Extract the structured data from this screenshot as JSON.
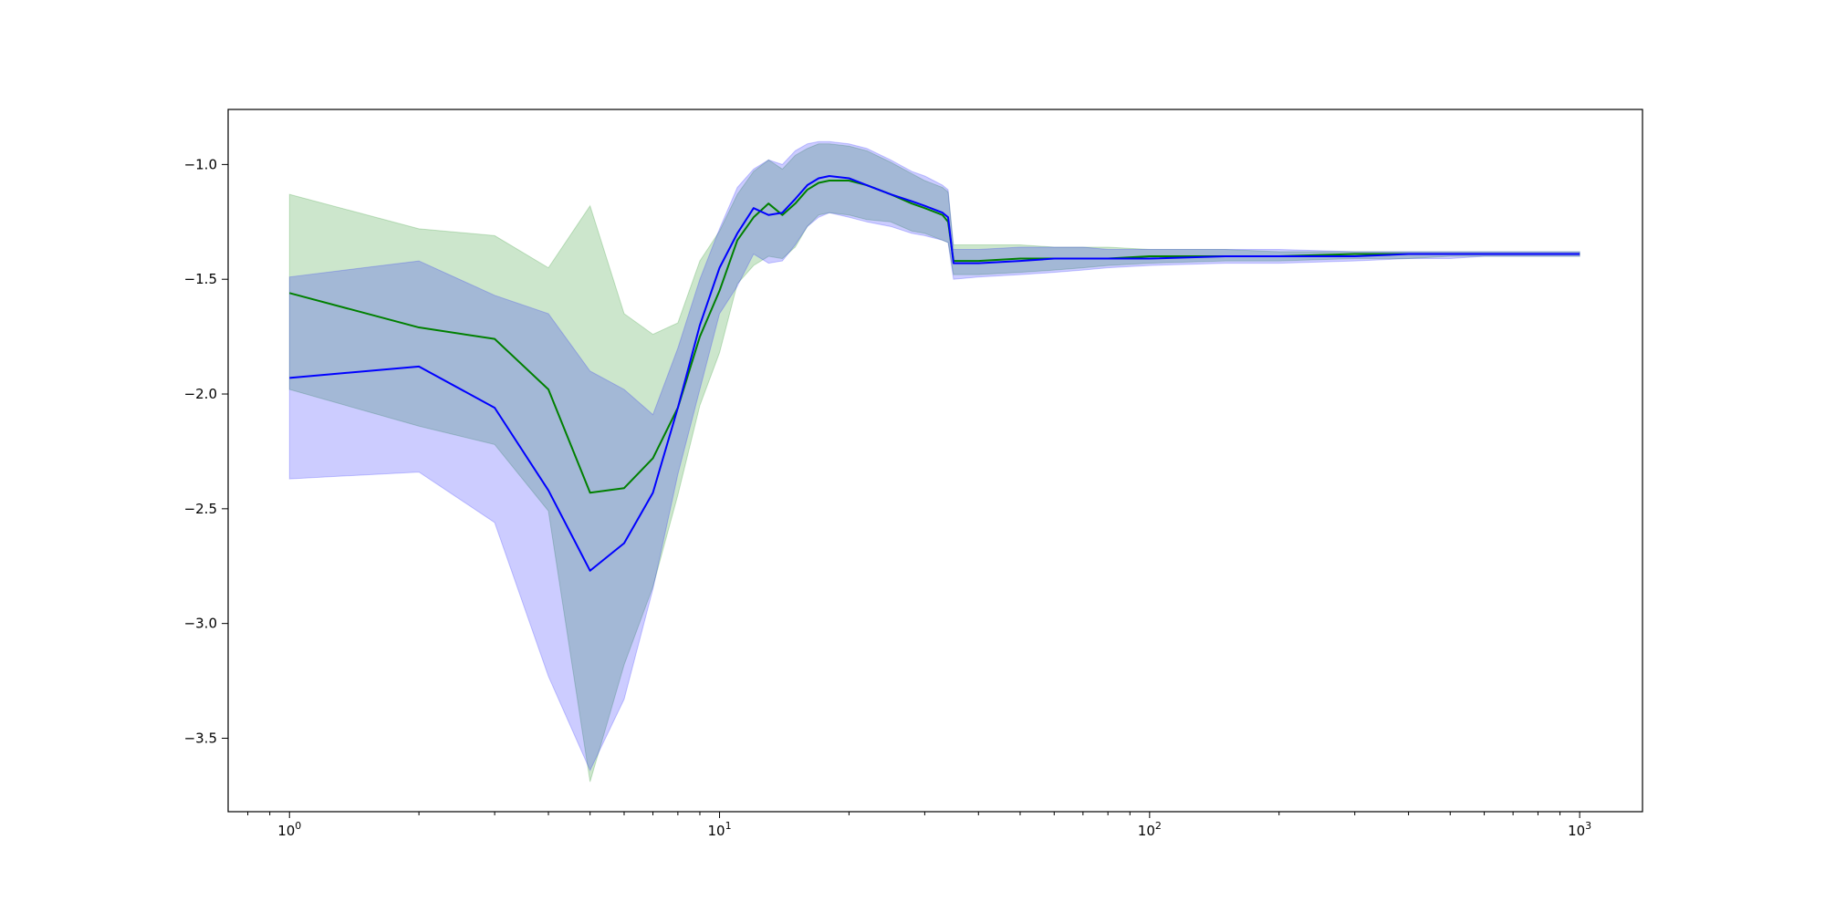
{
  "chart_data": {
    "type": "line",
    "title": "",
    "xlabel": "",
    "ylabel": "",
    "xscale": "log",
    "xlim": [
      0.72,
      1400
    ],
    "ylim": [
      -3.82,
      -0.76
    ],
    "grid": false,
    "x_tick_values": [
      1,
      10,
      100,
      1000
    ],
    "x_tick_labels": [
      {
        "base": "10",
        "exp": "0"
      },
      {
        "base": "10",
        "exp": "1"
      },
      {
        "base": "10",
        "exp": "2"
      },
      {
        "base": "10",
        "exp": "3"
      }
    ],
    "y_ticks": [
      -1.0,
      -1.5,
      -2.0,
      -2.5,
      -3.0,
      -3.5
    ],
    "y_tick_labels": [
      "−1.0",
      "−1.5",
      "−2.0",
      "−2.5",
      "−3.0",
      "−3.5"
    ],
    "series": [
      {
        "color": "#008000",
        "band_color": "#008000",
        "band_opacity": 0.2,
        "x": [
          1,
          2,
          3,
          4,
          5,
          6,
          7,
          8,
          9,
          10,
          11,
          12,
          13,
          14,
          15,
          16,
          17,
          18,
          20,
          22,
          25,
          28,
          30,
          33,
          34,
          35,
          40,
          50,
          60,
          70,
          80,
          100,
          150,
          200,
          300,
          400,
          500,
          600,
          800,
          1000
        ],
        "values": [
          -1.56,
          -1.71,
          -1.76,
          -1.98,
          -2.43,
          -2.41,
          -2.28,
          -2.06,
          -1.75,
          -1.55,
          -1.33,
          -1.23,
          -1.17,
          -1.22,
          -1.17,
          -1.11,
          -1.08,
          -1.07,
          -1.07,
          -1.09,
          -1.13,
          -1.17,
          -1.19,
          -1.22,
          -1.25,
          -1.42,
          -1.42,
          -1.41,
          -1.41,
          -1.41,
          -1.41,
          -1.4,
          -1.4,
          -1.4,
          -1.39,
          -1.39,
          -1.39,
          -1.39,
          -1.39,
          -1.39
        ],
        "lower": [
          -1.98,
          -2.14,
          -2.22,
          -2.51,
          -3.69,
          -3.18,
          -2.84,
          -2.44,
          -2.05,
          -1.82,
          -1.52,
          -1.44,
          -1.4,
          -1.41,
          -1.36,
          -1.27,
          -1.22,
          -1.21,
          -1.22,
          -1.24,
          -1.25,
          -1.29,
          -1.3,
          -1.33,
          -1.34,
          -1.48,
          -1.48,
          -1.47,
          -1.46,
          -1.45,
          -1.44,
          -1.43,
          -1.42,
          -1.42,
          -1.41,
          -1.41,
          -1.4,
          -1.4,
          -1.4,
          -1.4
        ],
        "upper": [
          -1.13,
          -1.28,
          -1.31,
          -1.45,
          -1.18,
          -1.65,
          -1.74,
          -1.69,
          -1.42,
          -1.29,
          -1.13,
          -1.03,
          -0.98,
          -1.02,
          -0.96,
          -0.93,
          -0.91,
          -0.91,
          -0.92,
          -0.94,
          -0.99,
          -1.04,
          -1.07,
          -1.1,
          -1.12,
          -1.35,
          -1.35,
          -1.35,
          -1.36,
          -1.36,
          -1.36,
          -1.37,
          -1.37,
          -1.38,
          -1.38,
          -1.38,
          -1.38,
          -1.38,
          -1.38,
          -1.38
        ]
      },
      {
        "color": "#0000ff",
        "band_color": "#0000ff",
        "band_opacity": 0.2,
        "x": [
          1,
          2,
          3,
          4,
          5,
          6,
          7,
          8,
          9,
          10,
          11,
          12,
          13,
          14,
          15,
          16,
          17,
          18,
          20,
          22,
          25,
          28,
          30,
          33,
          34,
          35,
          40,
          50,
          60,
          70,
          80,
          100,
          150,
          200,
          300,
          400,
          500,
          600,
          800,
          1000
        ],
        "values": [
          -1.93,
          -1.88,
          -2.06,
          -2.42,
          -2.77,
          -2.65,
          -2.43,
          -2.06,
          -1.7,
          -1.45,
          -1.3,
          -1.19,
          -1.22,
          -1.21,
          -1.15,
          -1.09,
          -1.06,
          -1.05,
          -1.06,
          -1.09,
          -1.13,
          -1.16,
          -1.18,
          -1.21,
          -1.23,
          -1.43,
          -1.43,
          -1.42,
          -1.41,
          -1.41,
          -1.41,
          -1.41,
          -1.4,
          -1.4,
          -1.4,
          -1.39,
          -1.39,
          -1.39,
          -1.39,
          -1.39
        ],
        "lower": [
          -2.37,
          -2.34,
          -2.56,
          -3.23,
          -3.64,
          -3.33,
          -2.85,
          -2.35,
          -1.98,
          -1.65,
          -1.53,
          -1.39,
          -1.43,
          -1.42,
          -1.35,
          -1.27,
          -1.23,
          -1.21,
          -1.23,
          -1.25,
          -1.27,
          -1.3,
          -1.31,
          -1.33,
          -1.34,
          -1.5,
          -1.49,
          -1.48,
          -1.47,
          -1.46,
          -1.45,
          -1.44,
          -1.43,
          -1.43,
          -1.42,
          -1.41,
          -1.41,
          -1.4,
          -1.4,
          -1.4
        ],
        "upper": [
          -1.49,
          -1.42,
          -1.57,
          -1.65,
          -1.9,
          -1.98,
          -2.09,
          -1.8,
          -1.5,
          -1.28,
          -1.1,
          -1.02,
          -0.98,
          -1.0,
          -0.94,
          -0.91,
          -0.9,
          -0.9,
          -0.91,
          -0.93,
          -0.98,
          -1.03,
          -1.05,
          -1.09,
          -1.11,
          -1.37,
          -1.37,
          -1.36,
          -1.36,
          -1.36,
          -1.37,
          -1.37,
          -1.37,
          -1.37,
          -1.38,
          -1.38,
          -1.38,
          -1.38,
          -1.38,
          -1.38
        ]
      }
    ]
  }
}
